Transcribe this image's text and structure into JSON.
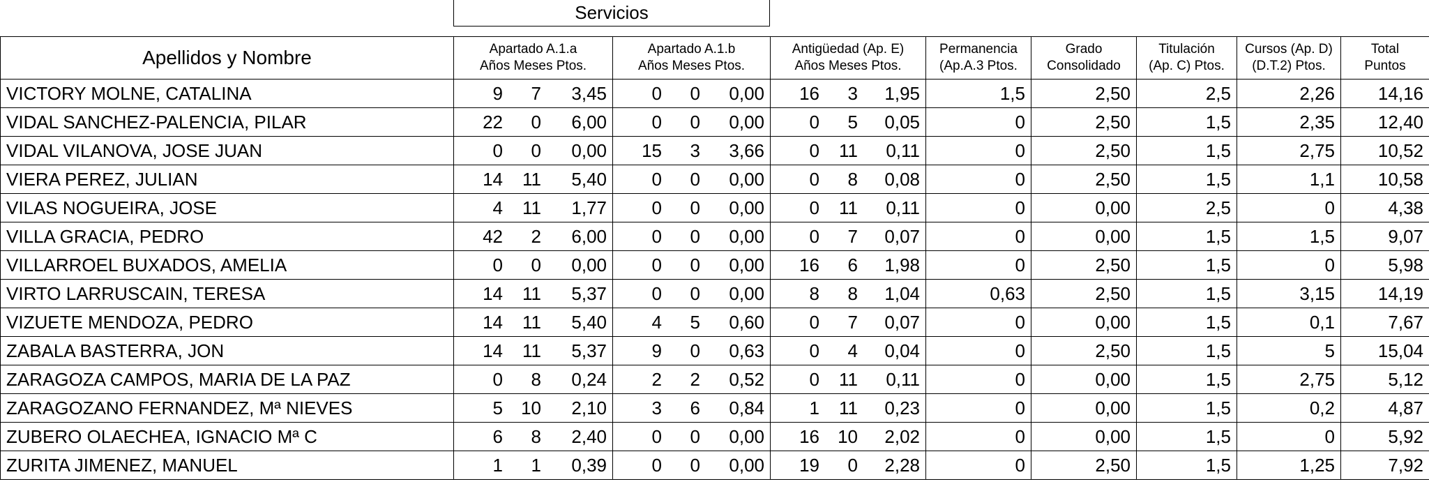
{
  "group_header": "Servicios",
  "headers": {
    "name": "Apellidos y Nombre",
    "a1a": [
      "Apartado A.1.a",
      "Años Meses Ptos."
    ],
    "a1b": [
      "Apartado A.1.b",
      "Años Meses Ptos."
    ],
    "antig": [
      "Antigüedad (Ap. E)",
      "Años Meses Ptos."
    ],
    "perm": [
      "Permanencia",
      "(Ap.A.3 Ptos."
    ],
    "grado": [
      "Grado",
      "Consolidado"
    ],
    "titul": [
      "Titulación",
      "(Ap. C) Ptos."
    ],
    "cursos": [
      "Cursos (Ap. D)",
      "(D.T.2) Ptos."
    ],
    "total": [
      "Total",
      "Puntos"
    ]
  },
  "rows": [
    {
      "name": "VICTORY MOLNE, CATALINA",
      "a1a": [
        "9",
        "7",
        "3,45"
      ],
      "a1b": [
        "0",
        "0",
        "0,00"
      ],
      "antig": [
        "16",
        "3",
        "1,95"
      ],
      "perm": "1,5",
      "grado": "2,50",
      "titul": "2,5",
      "cursos": "2,26",
      "total": "14,16"
    },
    {
      "name": "VIDAL SANCHEZ-PALENCIA, PILAR",
      "a1a": [
        "22",
        "0",
        "6,00"
      ],
      "a1b": [
        "0",
        "0",
        "0,00"
      ],
      "antig": [
        "0",
        "5",
        "0,05"
      ],
      "perm": "0",
      "grado": "2,50",
      "titul": "1,5",
      "cursos": "2,35",
      "total": "12,40"
    },
    {
      "name": "VIDAL VILANOVA, JOSE JUAN",
      "a1a": [
        "0",
        "0",
        "0,00"
      ],
      "a1b": [
        "15",
        "3",
        "3,66"
      ],
      "antig": [
        "0",
        "11",
        "0,11"
      ],
      "perm": "0",
      "grado": "2,50",
      "titul": "1,5",
      "cursos": "2,75",
      "total": "10,52"
    },
    {
      "name": "VIERA PEREZ, JULIAN",
      "a1a": [
        "14",
        "11",
        "5,40"
      ],
      "a1b": [
        "0",
        "0",
        "0,00"
      ],
      "antig": [
        "0",
        "8",
        "0,08"
      ],
      "perm": "0",
      "grado": "2,50",
      "titul": "1,5",
      "cursos": "1,1",
      "total": "10,58"
    },
    {
      "name": "VILAS NOGUEIRA, JOSE",
      "a1a": [
        "4",
        "11",
        "1,77"
      ],
      "a1b": [
        "0",
        "0",
        "0,00"
      ],
      "antig": [
        "0",
        "11",
        "0,11"
      ],
      "perm": "0",
      "grado": "0,00",
      "titul": "2,5",
      "cursos": "0",
      "total": "4,38"
    },
    {
      "name": "VILLA GRACIA, PEDRO",
      "a1a": [
        "42",
        "2",
        "6,00"
      ],
      "a1b": [
        "0",
        "0",
        "0,00"
      ],
      "antig": [
        "0",
        "7",
        "0,07"
      ],
      "perm": "0",
      "grado": "0,00",
      "titul": "1,5",
      "cursos": "1,5",
      "total": "9,07"
    },
    {
      "name": "VILLARROEL BUXADOS, AMELIA",
      "a1a": [
        "0",
        "0",
        "0,00"
      ],
      "a1b": [
        "0",
        "0",
        "0,00"
      ],
      "antig": [
        "16",
        "6",
        "1,98"
      ],
      "perm": "0",
      "grado": "2,50",
      "titul": "1,5",
      "cursos": "0",
      "total": "5,98"
    },
    {
      "name": "VIRTO LARRUSCAIN, TERESA",
      "a1a": [
        "14",
        "11",
        "5,37"
      ],
      "a1b": [
        "0",
        "0",
        "0,00"
      ],
      "antig": [
        "8",
        "8",
        "1,04"
      ],
      "perm": "0,63",
      "grado": "2,50",
      "titul": "1,5",
      "cursos": "3,15",
      "total": "14,19"
    },
    {
      "name": "VIZUETE MENDOZA, PEDRO",
      "a1a": [
        "14",
        "11",
        "5,40"
      ],
      "a1b": [
        "4",
        "5",
        "0,60"
      ],
      "antig": [
        "0",
        "7",
        "0,07"
      ],
      "perm": "0",
      "grado": "0,00",
      "titul": "1,5",
      "cursos": "0,1",
      "total": "7,67"
    },
    {
      "name": "ZABALA BASTERRA, JON",
      "a1a": [
        "14",
        "11",
        "5,37"
      ],
      "a1b": [
        "9",
        "0",
        "0,63"
      ],
      "antig": [
        "0",
        "4",
        "0,04"
      ],
      "perm": "0",
      "grado": "2,50",
      "titul": "1,5",
      "cursos": "5",
      "total": "15,04"
    },
    {
      "name": "ZARAGOZA CAMPOS, MARIA DE LA PAZ",
      "a1a": [
        "0",
        "8",
        "0,24"
      ],
      "a1b": [
        "2",
        "2",
        "0,52"
      ],
      "antig": [
        "0",
        "11",
        "0,11"
      ],
      "perm": "0",
      "grado": "0,00",
      "titul": "1,5",
      "cursos": "2,75",
      "total": "5,12"
    },
    {
      "name": "ZARAGOZANO FERNANDEZ, Mª NIEVES",
      "a1a": [
        "5",
        "10",
        "2,10"
      ],
      "a1b": [
        "3",
        "6",
        "0,84"
      ],
      "antig": [
        "1",
        "11",
        "0,23"
      ],
      "perm": "0",
      "grado": "0,00",
      "titul": "1,5",
      "cursos": "0,2",
      "total": "4,87"
    },
    {
      "name": "ZUBERO OLAECHEA, IGNACIO Mª C",
      "a1a": [
        "6",
        "8",
        "2,40"
      ],
      "a1b": [
        "0",
        "0",
        "0,00"
      ],
      "antig": [
        "16",
        "10",
        "2,02"
      ],
      "perm": "0",
      "grado": "0,00",
      "titul": "1,5",
      "cursos": "0",
      "total": "5,92"
    },
    {
      "name": "ZURITA JIMENEZ, MANUEL",
      "a1a": [
        "1",
        "1",
        "0,39"
      ],
      "a1b": [
        "0",
        "0",
        "0,00"
      ],
      "antig": [
        "19",
        "0",
        "2,28"
      ],
      "perm": "0",
      "grado": "2,50",
      "titul": "1,5",
      "cursos": "1,25",
      "total": "7,92"
    }
  ]
}
